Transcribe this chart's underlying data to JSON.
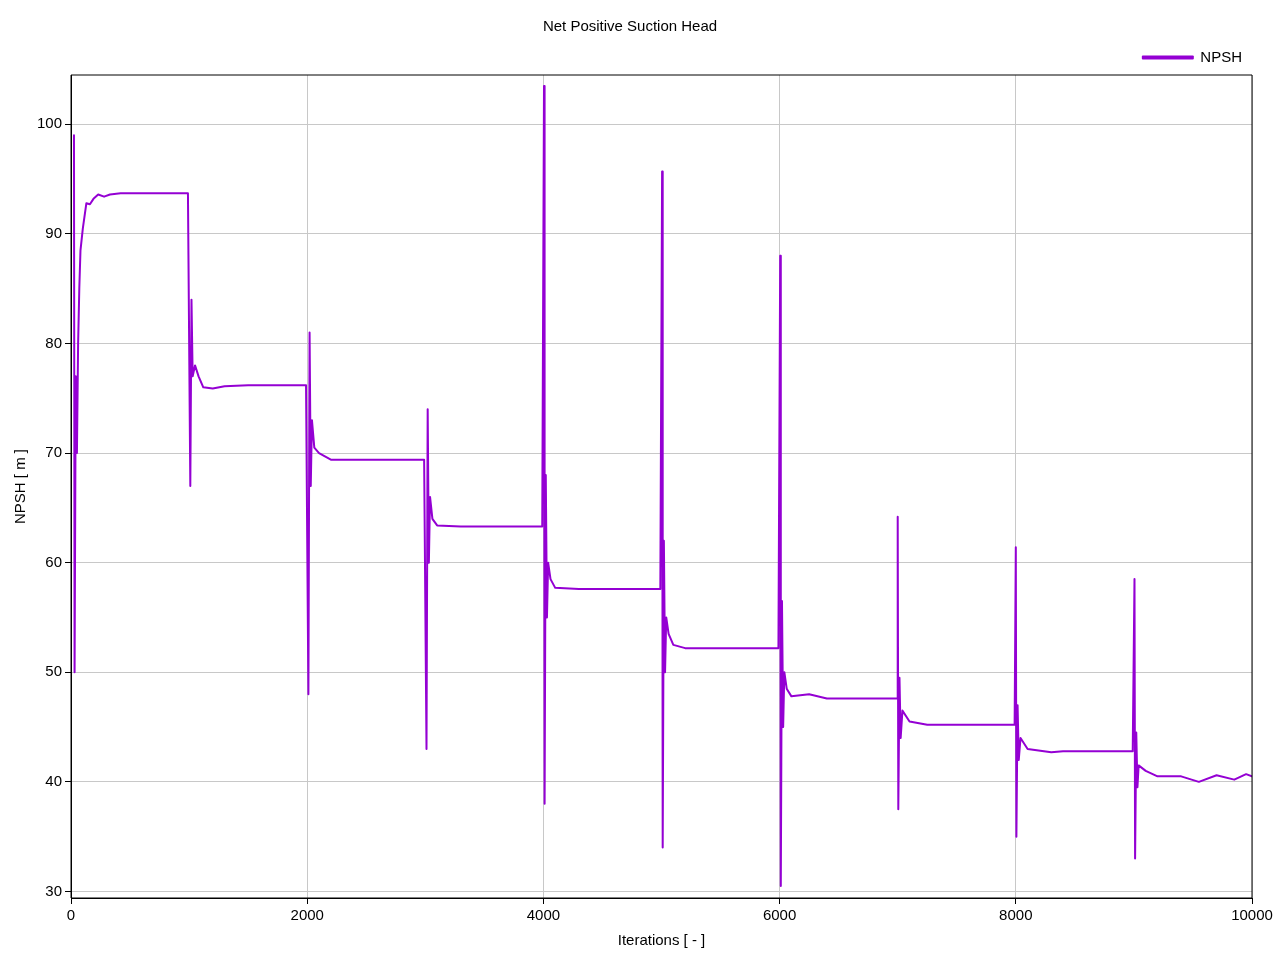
{
  "chart_data": {
    "type": "line",
    "title": "Net Positive Suction Head",
    "xlabel": "Iterations [ - ]",
    "ylabel": "NPSH [ m ]",
    "xlim": [
      0,
      10000
    ],
    "xticks": [
      0,
      2000,
      4000,
      6000,
      8000,
      10000
    ],
    "ylim": [
      29.4,
      104.5
    ],
    "yticks": [
      30,
      40,
      50,
      60,
      70,
      80,
      90,
      100
    ],
    "grid": true,
    "legend": "top right",
    "marker": "none",
    "line_style": "solid",
    "series": [
      {
        "name": "NPSH",
        "color": "#9400d3",
        "x": [
          25,
          30,
          40,
          50,
          60,
          70,
          80,
          100,
          130,
          160,
          190,
          230,
          280,
          330,
          420,
          990,
          1000,
          1005,
          1010,
          1020,
          1030,
          1050,
          1080,
          1120,
          1200,
          1300,
          1500,
          1990,
          2000,
          2005,
          2010,
          2020,
          2030,
          2040,
          2060,
          2100,
          2200,
          2500,
          2990,
          3000,
          3005,
          3010,
          3020,
          3030,
          3040,
          3060,
          3100,
          3300,
          3990,
          4000,
          4005,
          4010,
          4020,
          4030,
          4040,
          4060,
          4100,
          4300,
          4990,
          5000,
          5005,
          5010,
          5020,
          5030,
          5040,
          5060,
          5100,
          5200,
          5300,
          5990,
          6000,
          6005,
          6010,
          6020,
          6030,
          6040,
          6060,
          6100,
          6250,
          6400,
          6800,
          6995,
          7000,
          7005,
          7015,
          7025,
          7040,
          7100,
          7250,
          7990,
          8000,
          8005,
          8015,
          8025,
          8040,
          8100,
          8300,
          8400,
          8990,
          9000,
          9005,
          9010,
          9020,
          9030,
          9040,
          9100,
          9200,
          9400,
          9550,
          9700,
          9850,
          9950,
          10000
        ],
        "values": [
          99,
          50,
          77,
          70,
          80,
          85,
          88.5,
          90.5,
          92.8,
          92.7,
          93.2,
          93.6,
          93.4,
          93.6,
          93.7,
          93.7,
          null,
          null,
          67,
          84,
          77,
          78,
          77,
          76,
          75.9,
          76.1,
          76.2,
          76.2,
          null,
          null,
          48,
          81,
          67,
          73,
          70.5,
          70,
          69.4,
          69.4,
          69.4,
          null,
          null,
          43,
          74,
          60,
          66,
          64,
          63.4,
          63.3,
          63.3,
          null,
          103.5,
          38,
          68,
          55,
          60,
          58.5,
          57.7,
          57.6,
          57.6,
          null,
          95.7,
          34,
          62,
          50,
          55,
          53.5,
          52.5,
          52.2,
          52.2,
          52.2,
          null,
          88,
          30.5,
          56.5,
          45,
          50,
          48.5,
          47.8,
          48,
          47.6,
          47.6,
          47.6,
          64.2,
          37.5,
          49.5,
          44,
          46.5,
          45.5,
          45.2,
          45.2,
          61.4,
          35,
          47,
          42,
          44,
          43,
          42.7,
          42.8,
          42.8,
          null,
          58.5,
          33,
          44.5,
          39.5,
          41.5,
          41,
          40.5,
          40.5,
          40,
          40.6,
          40.2,
          40.7,
          40.5
        ]
      }
    ]
  }
}
